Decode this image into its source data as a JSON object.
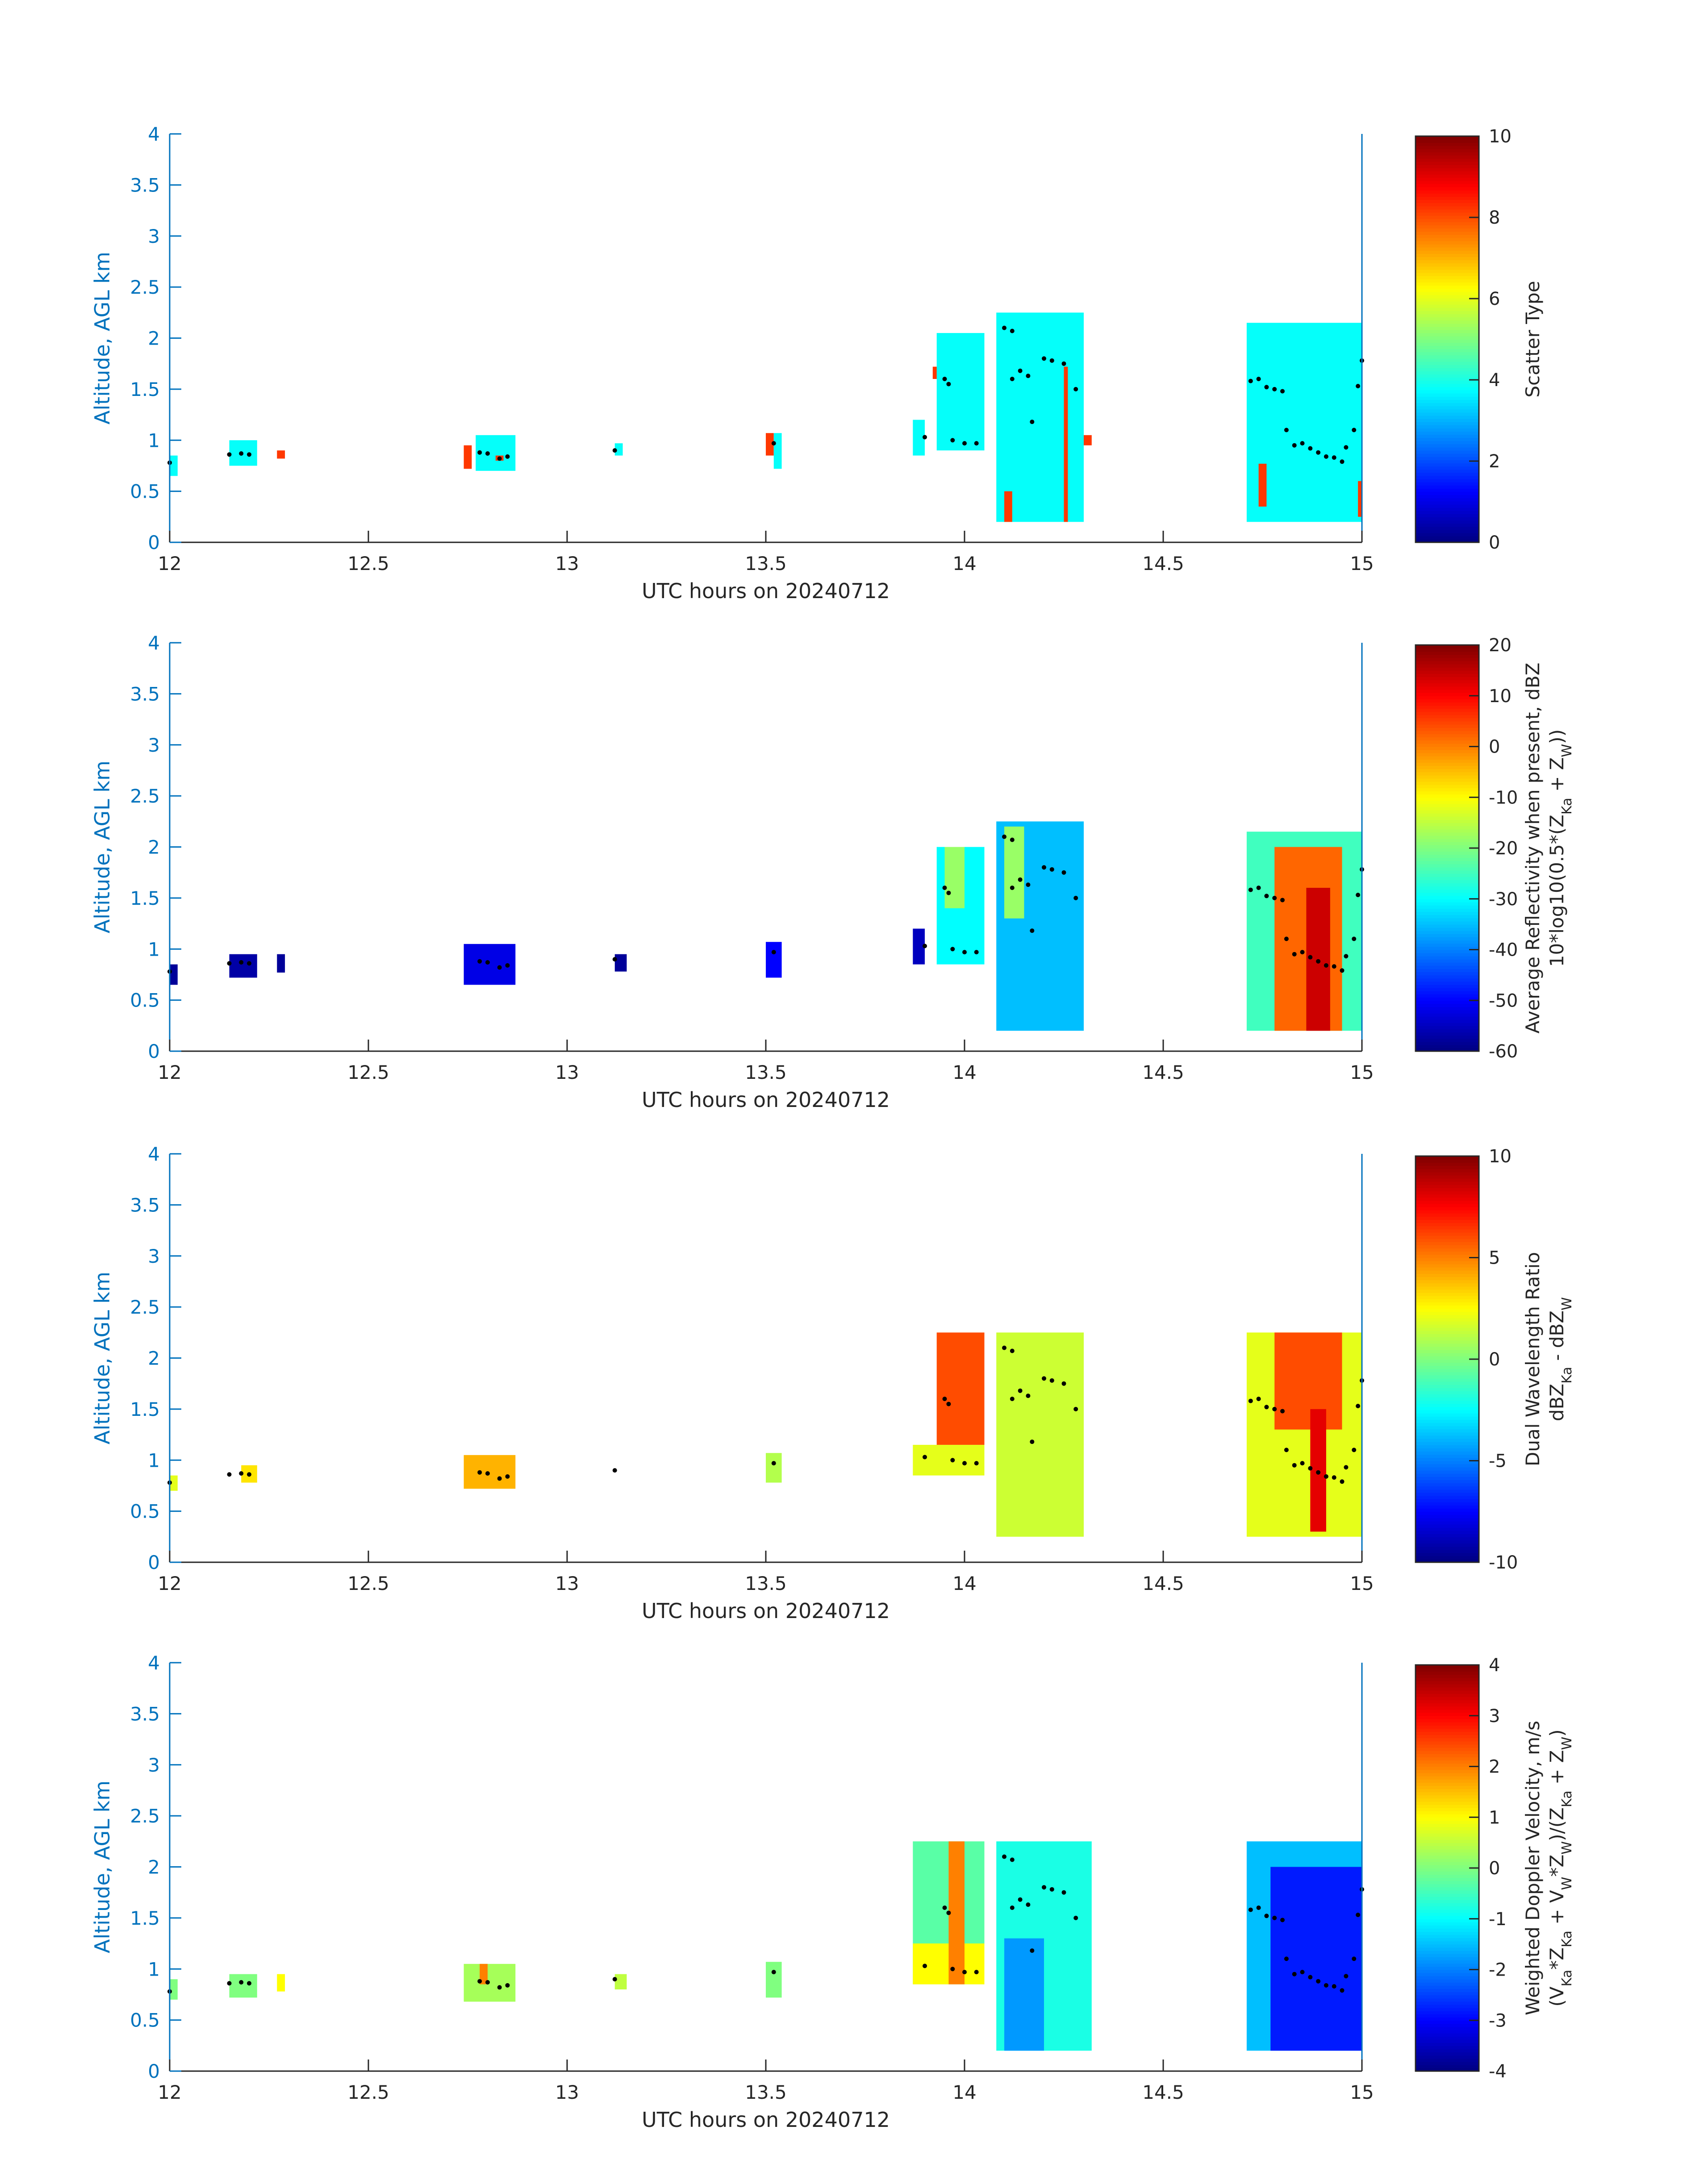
{
  "chart_data": [
    {
      "type": "heatmap",
      "panel": "scatter-type",
      "xlabel": "UTC hours on 20240712",
      "ylabel": "Altitude, AGL km",
      "xlim": [
        12,
        15
      ],
      "ylim": [
        0,
        4
      ],
      "xticks": [
        "12",
        "12.5",
        "13",
        "13.5",
        "14",
        "14.5",
        "15"
      ],
      "yticks": [
        "0",
        "0.5",
        "1",
        "1.5",
        "2",
        "2.5",
        "3",
        "3.5",
        "4"
      ],
      "colorbar": {
        "label_lines": [
          "Scatter Type"
        ],
        "range": [
          0,
          10
        ],
        "ticks": [
          "0",
          "2",
          "4",
          "6",
          "8",
          "10"
        ]
      },
      "colormap": "jet",
      "grid": false,
      "regions": [
        {
          "t0": 12.0,
          "t1": 12.02,
          "z0": 0.65,
          "z1": 0.85,
          "value": 3.8
        },
        {
          "t0": 12.15,
          "t1": 12.22,
          "z0": 0.75,
          "z1": 1.0,
          "value": 3.8
        },
        {
          "t0": 12.27,
          "t1": 12.29,
          "z0": 0.82,
          "z1": 0.9,
          "value": 8.2
        },
        {
          "t0": 12.74,
          "t1": 12.76,
          "z0": 0.72,
          "z1": 0.95,
          "value": 8.2
        },
        {
          "t0": 12.77,
          "t1": 12.87,
          "z0": 0.7,
          "z1": 1.05,
          "value": 3.8
        },
        {
          "t0": 12.82,
          "t1": 12.84,
          "z0": 0.8,
          "z1": 0.85,
          "value": 8.2
        },
        {
          "t0": 13.12,
          "t1": 13.14,
          "z0": 0.85,
          "z1": 0.97,
          "value": 3.8
        },
        {
          "t0": 13.5,
          "t1": 13.52,
          "z0": 0.85,
          "z1": 1.07,
          "value": 8.2
        },
        {
          "t0": 13.52,
          "t1": 13.54,
          "z0": 0.72,
          "z1": 1.07,
          "value": 3.8
        },
        {
          "t0": 13.87,
          "t1": 13.9,
          "z0": 0.85,
          "z1": 1.2,
          "value": 3.8
        },
        {
          "t0": 13.92,
          "t1": 13.94,
          "z0": 1.6,
          "z1": 1.72,
          "value": 8.2
        },
        {
          "t0": 13.93,
          "t1": 14.05,
          "z0": 0.9,
          "z1": 2.05,
          "value": 3.8
        },
        {
          "t0": 14.08,
          "t1": 14.3,
          "z0": 0.2,
          "z1": 2.25,
          "value": 3.8
        },
        {
          "t0": 14.1,
          "t1": 14.12,
          "z0": 0.2,
          "z1": 0.5,
          "value": 8.2
        },
        {
          "t0": 14.25,
          "t1": 14.26,
          "z0": 0.2,
          "z1": 1.72,
          "value": 8.2
        },
        {
          "t0": 14.3,
          "t1": 14.32,
          "z0": 0.95,
          "z1": 1.05,
          "value": 8.2
        },
        {
          "t0": 14.71,
          "t1": 15.0,
          "z0": 0.2,
          "z1": 2.15,
          "value": 3.8
        },
        {
          "t0": 14.74,
          "t1": 14.76,
          "z0": 0.35,
          "z1": 0.77,
          "value": 8.2
        },
        {
          "t0": 14.99,
          "t1": 15.0,
          "z0": 0.25,
          "z1": 0.6,
          "value": 8.2
        }
      ]
    },
    {
      "type": "heatmap",
      "panel": "reflectivity",
      "xlabel": "UTC hours on 20240712",
      "ylabel": "Altitude, AGL km",
      "xlim": [
        12,
        15
      ],
      "ylim": [
        0,
        4
      ],
      "xticks": [
        "12",
        "12.5",
        "13",
        "13.5",
        "14",
        "14.5",
        "15"
      ],
      "yticks": [
        "0",
        "0.5",
        "1",
        "1.5",
        "2",
        "2.5",
        "3",
        "3.5",
        "4"
      ],
      "colorbar": {
        "label_lines": [
          "Average Reflectivity when present, dBZ",
          "10*log10(0.5*(Z_Ka + Z_W))"
        ],
        "range": [
          -60,
          20
        ],
        "ticks": [
          "-60",
          "-50",
          "-40",
          "-30",
          "-20",
          "-10",
          "0",
          "10",
          "20"
        ]
      },
      "colormap": "jet",
      "grid": false,
      "regions": [
        {
          "t0": 12.0,
          "t1": 12.02,
          "z0": 0.65,
          "z1": 0.85,
          "value": -58
        },
        {
          "t0": 12.15,
          "t1": 12.22,
          "z0": 0.72,
          "z1": 0.95,
          "value": -57
        },
        {
          "t0": 12.27,
          "t1": 12.29,
          "z0": 0.77,
          "z1": 0.95,
          "value": -58
        },
        {
          "t0": 12.74,
          "t1": 12.87,
          "z0": 0.65,
          "z1": 1.05,
          "value": -52
        },
        {
          "t0": 13.12,
          "t1": 13.15,
          "z0": 0.78,
          "z1": 0.95,
          "value": -58
        },
        {
          "t0": 13.5,
          "t1": 13.54,
          "z0": 0.72,
          "z1": 1.07,
          "value": -50
        },
        {
          "t0": 13.87,
          "t1": 13.9,
          "z0": 0.85,
          "z1": 1.2,
          "value": -55
        },
        {
          "t0": 13.93,
          "t1": 14.05,
          "z0": 0.85,
          "z1": 2.0,
          "value": -30
        },
        {
          "t0": 13.95,
          "t1": 14.0,
          "z0": 1.4,
          "z1": 2.0,
          "value": -18
        },
        {
          "t0": 14.08,
          "t1": 14.3,
          "z0": 0.2,
          "z1": 2.25,
          "value": -35
        },
        {
          "t0": 14.1,
          "t1": 14.15,
          "z0": 1.3,
          "z1": 2.2,
          "value": -18
        },
        {
          "t0": 14.71,
          "t1": 15.0,
          "z0": 0.2,
          "z1": 2.15,
          "value": -25
        },
        {
          "t0": 14.78,
          "t1": 14.95,
          "z0": 0.2,
          "z1": 2.0,
          "value": 2
        },
        {
          "t0": 14.86,
          "t1": 14.92,
          "z0": 0.2,
          "z1": 1.6,
          "value": 14
        }
      ]
    },
    {
      "type": "heatmap",
      "panel": "dual-wavelength-ratio",
      "xlabel": "UTC hours on 20240712",
      "ylabel": "Altitude, AGL km",
      "xlim": [
        12,
        15
      ],
      "ylim": [
        0,
        4
      ],
      "xticks": [
        "12",
        "12.5",
        "13",
        "13.5",
        "14",
        "14.5",
        "15"
      ],
      "yticks": [
        "0",
        "0.5",
        "1",
        "1.5",
        "2",
        "2.5",
        "3",
        "3.5",
        "4"
      ],
      "colorbar": {
        "label_lines": [
          "Dual Wavelength Ratio",
          "dBZ_Ka - dBZ_W"
        ],
        "range": [
          -10,
          10
        ],
        "ticks": [
          "-10",
          "-5",
          "0",
          "5",
          "10"
        ]
      },
      "colormap": "jet",
      "grid": false,
      "regions": [
        {
          "t0": 12.0,
          "t1": 12.02,
          "z0": 0.7,
          "z1": 0.85,
          "value": 2
        },
        {
          "t0": 12.18,
          "t1": 12.22,
          "z0": 0.78,
          "z1": 0.95,
          "value": 3
        },
        {
          "t0": 12.74,
          "t1": 12.87,
          "z0": 0.72,
          "z1": 1.05,
          "value": 4
        },
        {
          "t0": 13.5,
          "t1": 13.54,
          "z0": 0.78,
          "z1": 1.07,
          "value": 1
        },
        {
          "t0": 13.87,
          "t1": 14.05,
          "z0": 0.85,
          "z1": 1.15,
          "value": 2
        },
        {
          "t0": 13.93,
          "t1": 14.05,
          "z0": 1.15,
          "z1": 2.25,
          "value": 6
        },
        {
          "t0": 14.08,
          "t1": 14.3,
          "z0": 0.25,
          "z1": 2.25,
          "value": 1.5
        },
        {
          "t0": 14.71,
          "t1": 15.0,
          "z0": 0.25,
          "z1": 2.25,
          "value": 2
        },
        {
          "t0": 14.78,
          "t1": 14.95,
          "z0": 1.3,
          "z1": 2.25,
          "value": 6
        },
        {
          "t0": 14.87,
          "t1": 14.91,
          "z0": 0.3,
          "z1": 1.5,
          "value": 8
        }
      ]
    },
    {
      "type": "heatmap",
      "panel": "doppler-velocity",
      "xlabel": "UTC hours on 20240712",
      "ylabel": "Altitude, AGL km",
      "xlim": [
        12,
        15
      ],
      "ylim": [
        0,
        4
      ],
      "xticks": [
        "12",
        "12.5",
        "13",
        "13.5",
        "14",
        "14.5",
        "15"
      ],
      "yticks": [
        "0",
        "0.5",
        "1",
        "1.5",
        "2",
        "2.5",
        "3",
        "3.5",
        "4"
      ],
      "colorbar": {
        "label_lines": [
          "Weighted Doppler Velocity, m/s",
          "(V_Ka*Z_Ka + V_W*Z_W)/(Z_Ka + Z_W)"
        ],
        "range": [
          -4,
          4
        ],
        "ticks": [
          "-4",
          "-3",
          "-2",
          "-1",
          "0",
          "1",
          "2",
          "3",
          "4"
        ]
      },
      "colormap": "jet",
      "grid": false,
      "regions": [
        {
          "t0": 12.0,
          "t1": 12.02,
          "z0": 0.7,
          "z1": 0.9,
          "value": 0
        },
        {
          "t0": 12.15,
          "t1": 12.22,
          "z0": 0.72,
          "z1": 0.95,
          "value": 0
        },
        {
          "t0": 12.27,
          "t1": 12.29,
          "z0": 0.78,
          "z1": 0.95,
          "value": 1
        },
        {
          "t0": 12.74,
          "t1": 12.87,
          "z0": 0.68,
          "z1": 1.05,
          "value": 0.3
        },
        {
          "t0": 12.78,
          "t1": 12.8,
          "z0": 0.85,
          "z1": 1.05,
          "value": 2
        },
        {
          "t0": 13.12,
          "t1": 13.15,
          "z0": 0.8,
          "z1": 0.95,
          "value": 0.5
        },
        {
          "t0": 13.5,
          "t1": 13.54,
          "z0": 0.72,
          "z1": 1.07,
          "value": 0
        },
        {
          "t0": 13.87,
          "t1": 14.05,
          "z0": 0.85,
          "z1": 2.25,
          "value": -0.3
        },
        {
          "t0": 13.87,
          "t1": 14.05,
          "z0": 0.85,
          "z1": 1.25,
          "value": 1
        },
        {
          "t0": 13.96,
          "t1": 14.0,
          "z0": 0.85,
          "z1": 2.25,
          "value": 2
        },
        {
          "t0": 14.08,
          "t1": 14.32,
          "z0": 0.2,
          "z1": 2.25,
          "value": -0.8
        },
        {
          "t0": 14.1,
          "t1": 14.2,
          "z0": 0.2,
          "z1": 1.3,
          "value": -1.8
        },
        {
          "t0": 14.71,
          "t1": 15.0,
          "z0": 0.2,
          "z1": 2.25,
          "value": -1.5
        },
        {
          "t0": 14.77,
          "t1": 15.0,
          "z0": 0.2,
          "z1": 2.0,
          "value": -2.8
        }
      ]
    }
  ],
  "centroid_marks": [
    {
      "panel": 0,
      "points": [
        [
          12.0,
          0.78
        ],
        [
          12.15,
          0.86
        ],
        [
          12.18,
          0.87
        ],
        [
          12.2,
          0.86
        ],
        [
          12.78,
          0.88
        ],
        [
          12.8,
          0.87
        ],
        [
          12.83,
          0.82
        ],
        [
          12.85,
          0.84
        ],
        [
          13.12,
          0.9
        ],
        [
          13.52,
          0.97
        ],
        [
          13.9,
          1.03
        ],
        [
          13.95,
          1.6
        ],
        [
          13.96,
          1.55
        ],
        [
          13.97,
          1.0
        ],
        [
          14.0,
          0.97
        ],
        [
          14.03,
          0.97
        ],
        [
          14.1,
          2.1
        ],
        [
          14.12,
          2.07
        ],
        [
          14.12,
          1.6
        ],
        [
          14.14,
          1.68
        ],
        [
          14.16,
          1.63
        ],
        [
          14.17,
          1.18
        ],
        [
          14.2,
          1.8
        ],
        [
          14.22,
          1.78
        ],
        [
          14.25,
          1.75
        ],
        [
          14.28,
          1.5
        ],
        [
          14.72,
          1.58
        ],
        [
          14.74,
          1.6
        ],
        [
          14.76,
          1.52
        ],
        [
          14.78,
          1.5
        ],
        [
          14.8,
          1.48
        ],
        [
          14.81,
          1.1
        ],
        [
          14.83,
          0.95
        ],
        [
          14.85,
          0.97
        ],
        [
          14.87,
          0.92
        ],
        [
          14.89,
          0.88
        ],
        [
          14.91,
          0.84
        ],
        [
          14.93,
          0.83
        ],
        [
          14.95,
          0.79
        ],
        [
          14.96,
          0.93
        ],
        [
          14.98,
          1.1
        ],
        [
          14.99,
          1.53
        ],
        [
          15.0,
          1.78
        ]
      ]
    }
  ]
}
